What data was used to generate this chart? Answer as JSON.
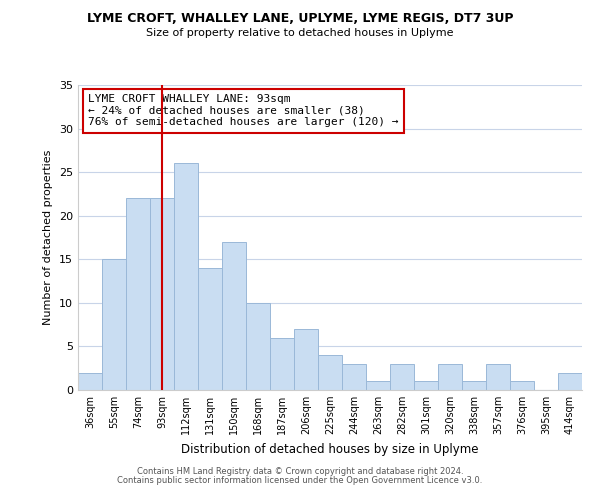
{
  "title": "LYME CROFT, WHALLEY LANE, UPLYME, LYME REGIS, DT7 3UP",
  "subtitle": "Size of property relative to detached houses in Uplyme",
  "xlabel": "Distribution of detached houses by size in Uplyme",
  "ylabel": "Number of detached properties",
  "bar_labels": [
    "36sqm",
    "55sqm",
    "74sqm",
    "93sqm",
    "112sqm",
    "131sqm",
    "150sqm",
    "168sqm",
    "187sqm",
    "206sqm",
    "225sqm",
    "244sqm",
    "263sqm",
    "282sqm",
    "301sqm",
    "320sqm",
    "338sqm",
    "357sqm",
    "376sqm",
    "395sqm",
    "414sqm"
  ],
  "bar_values": [
    2,
    15,
    22,
    22,
    26,
    14,
    17,
    10,
    6,
    7,
    4,
    3,
    1,
    3,
    1,
    3,
    1,
    3,
    1,
    0,
    2
  ],
  "bar_color": "#c9ddf2",
  "bar_edge_color": "#9ab8d8",
  "vline_x": 3,
  "vline_color": "#cc0000",
  "annotation_text": "LYME CROFT WHALLEY LANE: 93sqm\n← 24% of detached houses are smaller (38)\n76% of semi-detached houses are larger (120) →",
  "annotation_box_edge": "#cc0000",
  "ylim": [
    0,
    35
  ],
  "yticks": [
    0,
    5,
    10,
    15,
    20,
    25,
    30,
    35
  ],
  "footer_line1": "Contains HM Land Registry data © Crown copyright and database right 2024.",
  "footer_line2": "Contains public sector information licensed under the Open Government Licence v3.0.",
  "bg_color": "#ffffff",
  "grid_color": "#c8d4e8"
}
